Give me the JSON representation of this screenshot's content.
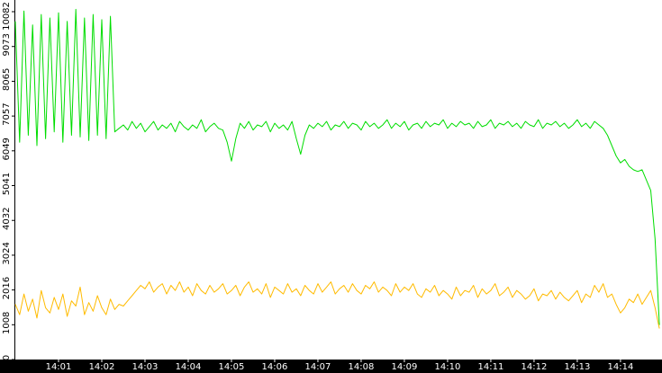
{
  "chart_data": {
    "type": "line",
    "x": [
      0,
      0.1,
      0.2,
      0.3,
      0.4,
      0.5,
      0.6,
      0.7,
      0.8,
      0.9,
      1,
      1.1,
      1.2,
      1.3,
      1.4,
      1.5,
      1.6,
      1.7,
      1.8,
      1.9,
      2,
      2.1,
      2.2,
      2.3,
      2.4,
      2.5,
      2.6,
      2.7,
      2.8,
      2.9,
      3,
      3.1,
      3.2,
      3.3,
      3.4,
      3.5,
      3.6,
      3.7,
      3.8,
      3.9,
      4,
      4.1,
      4.2,
      4.3,
      4.4,
      4.5,
      4.6,
      4.7,
      4.8,
      4.9,
      5,
      5.1,
      5.2,
      5.3,
      5.4,
      5.5,
      5.6,
      5.7,
      5.8,
      5.9,
      6,
      6.1,
      6.2,
      6.3,
      6.4,
      6.5,
      6.6,
      6.7,
      6.8,
      6.9,
      7,
      7.1,
      7.2,
      7.3,
      7.4,
      7.5,
      7.6,
      7.7,
      7.8,
      7.9,
      8,
      8.1,
      8.2,
      8.3,
      8.4,
      8.5,
      8.6,
      8.7,
      8.8,
      8.9,
      9,
      9.1,
      9.2,
      9.3,
      9.4,
      9.5,
      9.6,
      9.7,
      9.8,
      9.9,
      10,
      10.1,
      10.2,
      10.3,
      10.4,
      10.5,
      10.6,
      10.7,
      10.8,
      10.9,
      11,
      11.1,
      11.2,
      11.3,
      11.4,
      11.5,
      11.6,
      11.7,
      11.8,
      11.9,
      12,
      12.1,
      12.2,
      12.3,
      12.4,
      12.5,
      12.6,
      12.7,
      12.8,
      12.9,
      13,
      13.1,
      13.2,
      13.3,
      13.4,
      13.5,
      13.6,
      13.7,
      13.8,
      13.9,
      14,
      14.1,
      14.2,
      14.3,
      14.4,
      14.5,
      14.6,
      14.7,
      14.8,
      14.9
    ],
    "series": [
      {
        "color": "#00dd00",
        "values": [
          9800,
          6300,
          10100,
          6500,
          9700,
          6200,
          10000,
          6400,
          9900,
          6600,
          10050,
          6300,
          9800,
          6500,
          10150,
          6450,
          9900,
          6350,
          10000,
          6500,
          9850,
          6400,
          9950,
          6600,
          6700,
          6800,
          6650,
          6900,
          6700,
          6850,
          6600,
          6750,
          6900,
          6650,
          6800,
          6700,
          6850,
          6600,
          6900,
          6750,
          6650,
          6800,
          6700,
          6950,
          6600,
          6750,
          6850,
          6700,
          6650,
          6300,
          5750,
          6400,
          6850,
          6700,
          6900,
          6650,
          6800,
          6750,
          6900,
          6600,
          6850,
          6700,
          6800,
          6650,
          6900,
          6400,
          5950,
          6500,
          6800,
          6700,
          6850,
          6750,
          6900,
          6650,
          6800,
          6750,
          6900,
          6700,
          6850,
          6800,
          6650,
          6900,
          6750,
          6850,
          6700,
          6800,
          6950,
          6700,
          6850,
          6750,
          6900,
          6650,
          6800,
          6850,
          6700,
          6900,
          6750,
          6850,
          6800,
          6950,
          6700,
          6850,
          6750,
          6900,
          6800,
          6850,
          6700,
          6900,
          6750,
          6800,
          6950,
          6700,
          6850,
          6800,
          6900,
          6750,
          6850,
          6700,
          6900,
          6800,
          6750,
          6950,
          6700,
          6850,
          6800,
          6900,
          6750,
          6850,
          6700,
          6800,
          6950,
          6750,
          6850,
          6700,
          6900,
          6800,
          6700,
          6500,
          6200,
          5900,
          5700,
          5800,
          5600,
          5500,
          5450,
          5500,
          5200,
          4900,
          3500,
          1000
        ]
      },
      {
        "color": "#ffbb00",
        "values": [
          1600,
          1300,
          1900,
          1400,
          1750,
          1200,
          2000,
          1500,
          1350,
          1800,
          1450,
          1900,
          1250,
          1700,
          1550,
          2100,
          1300,
          1650,
          1400,
          1850,
          1500,
          1300,
          1750,
          1450,
          1600,
          1550,
          1700,
          1850,
          2000,
          2150,
          2050,
          2250,
          1950,
          2100,
          2200,
          1900,
          2150,
          2000,
          2250,
          1950,
          2100,
          1850,
          2200,
          2000,
          1900,
          2150,
          1950,
          2050,
          2200,
          1900,
          2000,
          2150,
          1850,
          2100,
          2250,
          1950,
          2050,
          1900,
          2200,
          1800,
          2100,
          2000,
          1900,
          2200,
          1950,
          2050,
          1850,
          2150,
          2000,
          1900,
          2200,
          1950,
          2100,
          2250,
          1900,
          2050,
          2150,
          1950,
          2200,
          2000,
          1900,
          2150,
          2050,
          2250,
          1950,
          2100,
          2000,
          1850,
          2200,
          1950,
          2100,
          2000,
          2200,
          1900,
          1800,
          2050,
          1950,
          2150,
          1850,
          2000,
          1900,
          1750,
          2100,
          1850,
          2000,
          1950,
          2150,
          1800,
          2050,
          1900,
          2000,
          2200,
          1850,
          1950,
          2100,
          1800,
          2000,
          1900,
          1750,
          1850,
          2050,
          1700,
          1900,
          1850,
          2000,
          1750,
          1950,
          1800,
          1700,
          1850,
          2000,
          1650,
          1900,
          1800,
          2150,
          1950,
          2200,
          1800,
          1900,
          1600,
          1350,
          1500,
          1750,
          1650,
          1900,
          1600,
          1800,
          2000,
          1500,
          900
        ]
      }
    ],
    "xlim": [
      0,
      14.96
    ],
    "xticks": [
      {
        "value": 1,
        "label": "14:01"
      },
      {
        "value": 2,
        "label": "14:02"
      },
      {
        "value": 3,
        "label": "14:03"
      },
      {
        "value": 4,
        "label": "14:04"
      },
      {
        "value": 5,
        "label": "14:05"
      },
      {
        "value": 6,
        "label": "14:06"
      },
      {
        "value": 7,
        "label": "14:07"
      },
      {
        "value": 8,
        "label": "14:08"
      },
      {
        "value": 9,
        "label": "14:09"
      },
      {
        "value": 10,
        "label": "14:10"
      },
      {
        "value": 11,
        "label": "14:11"
      },
      {
        "value": 12,
        "label": "14:12"
      },
      {
        "value": 13,
        "label": "14:13"
      },
      {
        "value": 14,
        "label": "14:14"
      }
    ],
    "ylim": [
      0,
      10082
    ],
    "yticks": [
      0,
      1008,
      2016,
      3024,
      4032,
      5041,
      6049,
      7057,
      8065,
      9073,
      10082
    ]
  }
}
